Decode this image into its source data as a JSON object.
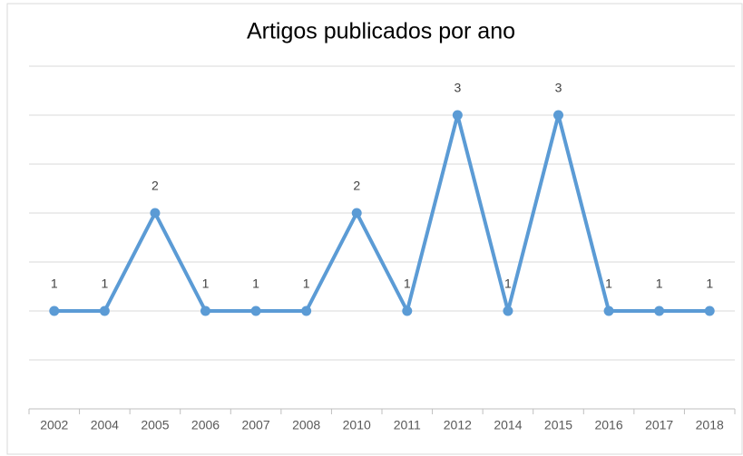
{
  "chart_data": {
    "type": "line",
    "title": "Artigos publicados por ano",
    "categories": [
      "2002",
      "2004",
      "2005",
      "2006",
      "2007",
      "2008",
      "2010",
      "2011",
      "2012",
      "2014",
      "2015",
      "2016",
      "2017",
      "2018"
    ],
    "values": [
      1,
      1,
      2,
      1,
      1,
      1,
      2,
      1,
      3,
      1,
      3,
      1,
      1,
      1
    ],
    "color": "#5b9bd5",
    "ylim": [
      0,
      3.5
    ],
    "yticks": [
      0,
      0.5,
      1,
      1.5,
      2,
      2.5,
      3,
      3.5
    ],
    "grid": true
  }
}
